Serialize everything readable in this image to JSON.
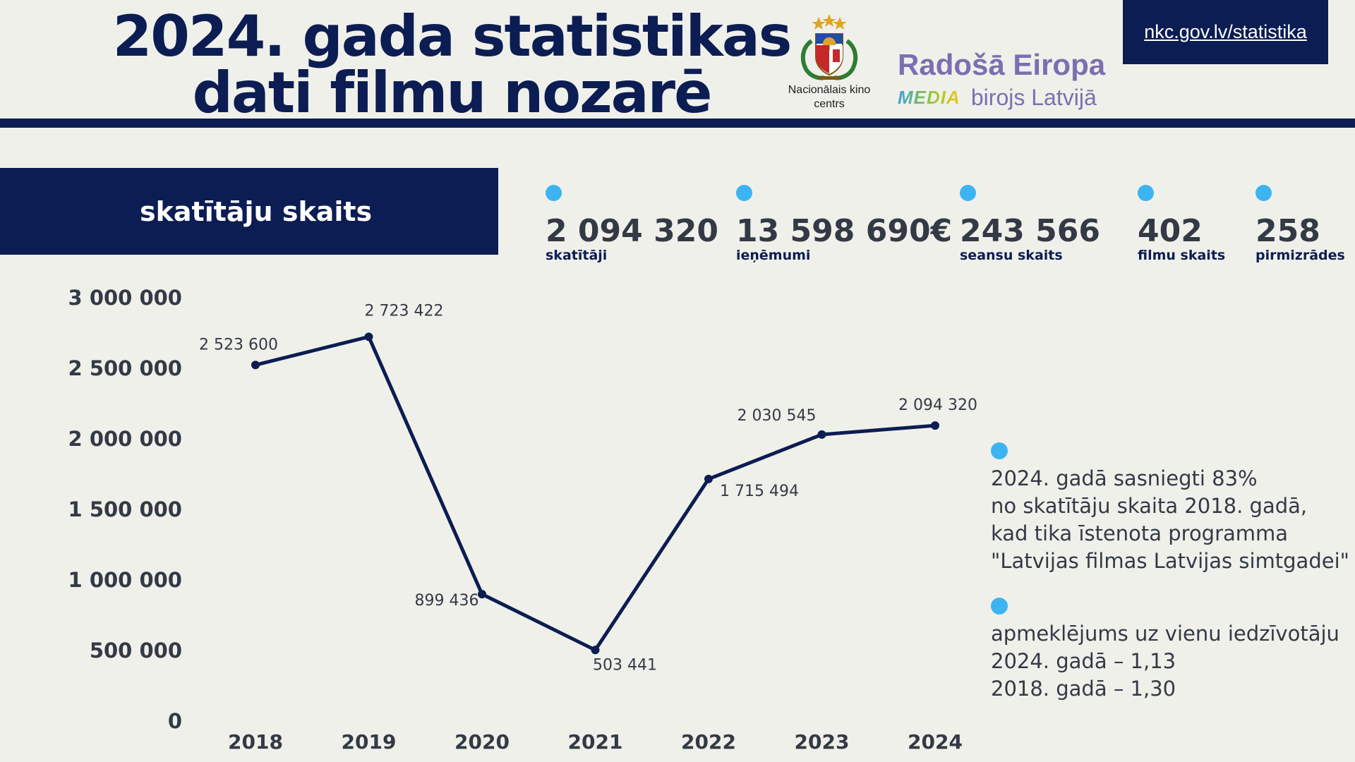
{
  "header": {
    "title_line1": "2024. gada statistikas",
    "title_line2": "dati filmu nozarē",
    "crest_label_line1": "Nacionālais kino",
    "crest_label_line2": "centrs",
    "europe_title": "Radošā Eiropa",
    "media_logo": "MEDIA",
    "media_text": "birojs Latvijā",
    "url": "nkc.gov.lv/statistika"
  },
  "section": {
    "title": "skatītāju skaits"
  },
  "stats": [
    {
      "value": "2 094 320",
      "label": "skatītāji"
    },
    {
      "value": "13 598 690€",
      "label": "ieņēmumi"
    },
    {
      "value": "243 566",
      "label": "seansu skaits"
    },
    {
      "value": "402",
      "label": "filmu skaits"
    },
    {
      "value": "258",
      "label": "pirmizrādes"
    }
  ],
  "notes": [
    {
      "lines": [
        "2024. gadā sasniegti 83%",
        "no skatītāju skaita 2018. gadā,",
        "kad tika īstenota programma",
        "\"Latvijas filmas Latvijas simtgadei\""
      ]
    },
    {
      "lines": [
        "apmeklējums uz vienu iedzīvotāju",
        "2024. gadā – 1,13",
        "2018. gadā – 1,30"
      ]
    }
  ],
  "colors": {
    "navy": "#0b1d52",
    "accent": "#3db4f2",
    "purple": "#7c6fb0",
    "text": "#333a45"
  },
  "chart_data": {
    "type": "line",
    "title": "skatītāju skaits",
    "x": [
      "2018",
      "2019",
      "2020",
      "2021",
      "2022",
      "2023",
      "2024"
    ],
    "values": [
      2523600,
      2723422,
      899436,
      503441,
      1715494,
      2030545,
      2094320
    ],
    "data_labels": [
      "2 523 600",
      "2 723 422",
      "899 436",
      "503 441",
      "1 715 494",
      "2 030 545",
      "2 094 320"
    ],
    "y_ticks": [
      0,
      500000,
      1000000,
      1500000,
      2000000,
      2500000,
      3000000
    ],
    "y_tick_labels": [
      "0",
      "500 000",
      "1 000 000",
      "1 500 000",
      "2 000 000",
      "2 500 000",
      "3 000 000"
    ],
    "ylim": [
      0,
      3000000
    ],
    "grid": false,
    "legend": "none"
  }
}
